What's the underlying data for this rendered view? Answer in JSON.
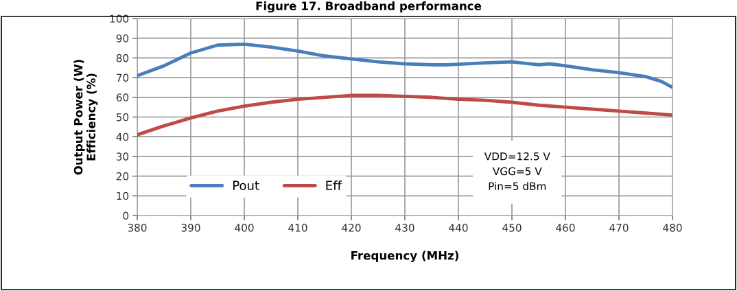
{
  "chart_data": {
    "type": "line",
    "title": "Figure 17. Broadband performance",
    "xlabel": "Frequency (MHz)",
    "ylabel": "Output Power (W)\nEfficiency (%)",
    "xlim": [
      380,
      480
    ],
    "xticks": [
      380,
      390,
      400,
      410,
      420,
      430,
      440,
      450,
      460,
      470,
      480
    ],
    "ylim": [
      0,
      100
    ],
    "yticks": [
      0,
      10,
      20,
      30,
      40,
      50,
      60,
      70,
      80,
      90,
      100
    ],
    "grid": true,
    "legend": "lower left",
    "marker": "none",
    "line_style": "solid",
    "annotations": [
      "VDD=12.5 V\nVGG=5 V\nPin=5 dBm"
    ],
    "series": [
      {
        "name": "Pout",
        "color": "#4a7ebb",
        "x": [
          380,
          385,
          390,
          395,
          400,
          405,
          410,
          415,
          420,
          425,
          430,
          435,
          438,
          445,
          450,
          455,
          457,
          460,
          465,
          470,
          475,
          478,
          480
        ],
        "values": [
          71,
          76,
          82.5,
          86.5,
          87,
          85.5,
          83.5,
          81,
          79.5,
          78,
          77,
          76.5,
          76.5,
          77.5,
          78,
          76.5,
          77,
          76,
          74,
          72.5,
          70.5,
          68,
          65
        ]
      },
      {
        "name": "Eff",
        "color": "#be4b48",
        "x": [
          380,
          385,
          390,
          395,
          400,
          405,
          410,
          415,
          420,
          425,
          430,
          435,
          440,
          445,
          450,
          455,
          460,
          465,
          470,
          475,
          480
        ],
        "values": [
          41,
          45.5,
          49.5,
          53,
          55.5,
          57.5,
          59,
          60,
          61,
          61,
          60.5,
          60,
          59,
          58.5,
          57.5,
          56,
          55,
          54,
          53,
          52,
          51
        ]
      }
    ]
  }
}
